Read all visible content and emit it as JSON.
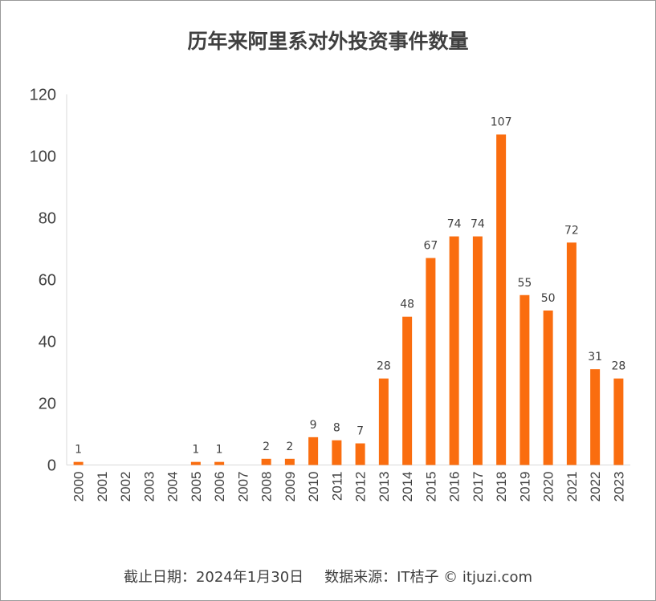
{
  "chart_data": {
    "type": "bar",
    "title": "历年来阿里系对外投资事件数量",
    "xlabel": "",
    "ylabel": "",
    "ylim": [
      0,
      120
    ],
    "yticks": [
      0,
      20,
      40,
      60,
      80,
      100,
      120
    ],
    "grid": false,
    "legend": "none",
    "categories": [
      "2000",
      "2001",
      "2002",
      "2003",
      "2004",
      "2005",
      "2006",
      "2007",
      "2008",
      "2009",
      "2010",
      "2011",
      "2012",
      "2013",
      "2014",
      "2015",
      "2016",
      "2017",
      "2018",
      "2019",
      "2020",
      "2021",
      "2022",
      "2023"
    ],
    "values": [
      1,
      0,
      0,
      0,
      0,
      1,
      1,
      0,
      2,
      2,
      9,
      8,
      7,
      28,
      48,
      67,
      74,
      74,
      107,
      55,
      50,
      72,
      31,
      28
    ],
    "data_labels": [
      "1",
      "",
      "",
      "",
      "",
      "1",
      "1",
      "",
      "2",
      "2",
      "9",
      "8",
      "7",
      "28",
      "48",
      "67",
      "74",
      "74",
      "107",
      "55",
      "50",
      "72",
      "31",
      "28"
    ],
    "bar_color": "#fa6d0f"
  },
  "footer": {
    "date_text": "截止日期：2024年1月30日",
    "source_text": "数据来源：IT桔子 © itjuzi.com"
  }
}
